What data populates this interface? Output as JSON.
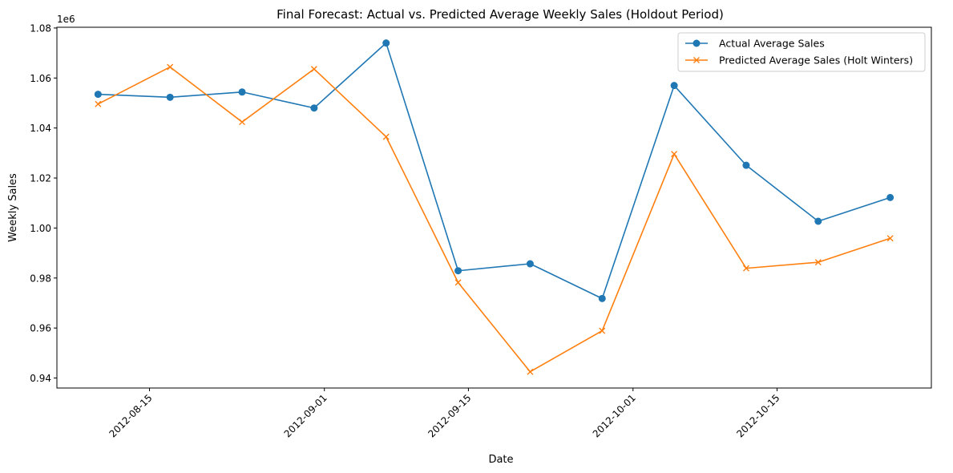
{
  "chart_data": {
    "type": "line",
    "title": "Final Forecast: Actual vs. Predicted Average Weekly Sales (Holdout Period)",
    "xlabel": "Date",
    "ylabel": "Weekly Sales",
    "y_offset_label": "1e6",
    "x": [
      "2012-08-10",
      "2012-08-17",
      "2012-08-24",
      "2012-08-31",
      "2012-09-07",
      "2012-09-14",
      "2012-09-21",
      "2012-09-28",
      "2012-10-05",
      "2012-10-12",
      "2012-10-19",
      "2012-10-26"
    ],
    "series": [
      {
        "name": "Actual Average Sales",
        "color": "#1f77b4",
        "marker": "circle",
        "values": [
          1053500,
          1052300,
          1054400,
          1048000,
          1074000,
          982900,
          985700,
          971800,
          1057000,
          1025100,
          1002700,
          1012200
        ]
      },
      {
        "name": "Predicted Average Sales (Holt Winters)",
        "color": "#ff7f0e",
        "marker": "x",
        "values": [
          1049600,
          1064400,
          1042400,
          1063600,
          1036500,
          978200,
          942500,
          958900,
          1029600,
          983900,
          986300,
          995900
        ]
      }
    ],
    "x_ticks": [
      "2012-08-15",
      "2012-09-01",
      "2012-09-15",
      "2012-10-01",
      "2012-10-15"
    ],
    "y_ticks": [
      0.94,
      0.96,
      0.98,
      1.0,
      1.02,
      1.04,
      1.06,
      1.08
    ],
    "ylim": [
      936000,
      1080300
    ],
    "xlim": [
      "2012-08-06",
      "2012-10-30"
    ],
    "legend_position": "top-right",
    "grid": false
  }
}
